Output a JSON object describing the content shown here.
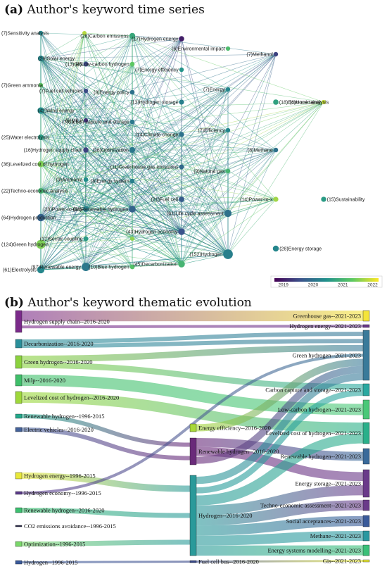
{
  "panel_a": {
    "letter": "(a)",
    "title": "Author's keyword time series"
  },
  "panel_b": {
    "letter": "(b)",
    "title": "Author's keyword thematic evolution"
  },
  "chart_data": [
    {
      "type": "scatter",
      "title": "Author's keyword time series",
      "colorbar": {
        "ticks": [
          "2019",
          "2020",
          "2021",
          "2022"
        ],
        "range": [
          2018.7,
          2022.2
        ]
      },
      "nodes": [
        {
          "id": "sensitivity",
          "label": "(7)Sensitivity analysis",
          "year": 2020.3,
          "size": 7
        },
        {
          "id": "small1",
          "label": "",
          "year": 2021.8,
          "size": 5
        },
        {
          "id": "carbon_em",
          "label": "(28)Carbon emissions",
          "year": 2020.8,
          "size": 28
        },
        {
          "id": "hydrogen_energy",
          "label": "(17)Hydrogen energy",
          "year": 2019.0,
          "size": 17
        },
        {
          "id": "env_impact",
          "label": "(6)Environmental impact",
          "year": 2021.1,
          "size": 6
        },
        {
          "id": "methanol",
          "label": "(7)Methanol",
          "year": 2019.4,
          "size": 7
        },
        {
          "id": "solar",
          "label": "(26)Solar energy",
          "year": 2020.3,
          "size": 26
        },
        {
          "id": "gis",
          "label": "(13)GIS",
          "year": 2019.5,
          "size": 13
        },
        {
          "id": "low_carbon",
          "label": "(8)Low-carbon hydrogen",
          "year": 2021.3,
          "size": 8
        },
        {
          "id": "en_eff",
          "label": "(7)Energy efficiency",
          "year": 2020.5,
          "size": 7
        },
        {
          "id": "green_ammonia",
          "label": "(7)Green ammonia",
          "year": 2021.3,
          "size": 7
        },
        {
          "id": "fuel_cell_veh",
          "label": "(7)Fuel cell vehicles",
          "year": 2019.5,
          "size": 7
        },
        {
          "id": "energy_policy",
          "label": "(8)Energy policy",
          "year": 2020.0,
          "size": 8
        },
        {
          "id": "energy",
          "label": "(7)Energy",
          "year": 2020.3,
          "size": 7
        },
        {
          "id": "econ",
          "label": "(18)Economic analysis",
          "year": 2020.7,
          "size": 18
        },
        {
          "id": "uncertainty",
          "label": "(6)Uncertainty",
          "year": 2021.9,
          "size": 6
        },
        {
          "id": "wind",
          "label": "(42)Wind energy",
          "year": 2020.4,
          "size": 42
        },
        {
          "id": "milp",
          "label": "(6)MILP",
          "year": 2019.2,
          "size": 6
        },
        {
          "id": "ccs",
          "label": "(7)Carbon capture and storage",
          "year": 2020.1,
          "size": 7
        },
        {
          "id": "h2storage",
          "label": "(13)Hydrogen storage",
          "year": 2020.2,
          "size": 13
        },
        {
          "id": "climate",
          "label": "(14)Climate change",
          "year": 2020.0,
          "size": 14
        },
        {
          "id": "efficiency",
          "label": "(7)Efficiency",
          "year": 2020.3,
          "size": 7
        },
        {
          "id": "water_el",
          "label": "(25)Water electrolysis",
          "year": 2020.6,
          "size": 25
        },
        {
          "id": "h2sc",
          "label": "(16)Hydrogen supply chain",
          "year": 2019.4,
          "size": 16
        },
        {
          "id": "optimization",
          "label": "(26)Optimization",
          "year": 2020.1,
          "size": 26
        },
        {
          "id": "methane",
          "label": "(8)Methane",
          "year": 2020.0,
          "size": 8
        },
        {
          "id": "lcoh",
          "label": "(36)Levelized cost of hydrogen",
          "year": 2021.5,
          "size": 36
        },
        {
          "id": "ghg",
          "label": "(11)Greenhouse gas emissions",
          "year": 2019.9,
          "size": 11
        },
        {
          "id": "natgas",
          "label": "(9)Natural gas",
          "year": 2021.0,
          "size": 9
        },
        {
          "id": "ammonia",
          "label": "(9)Ammonia",
          "year": 2020.4,
          "size": 9
        },
        {
          "id": "ensys",
          "label": "(8)Energy system",
          "year": 2020.2,
          "size": 8
        },
        {
          "id": "tea",
          "label": "(22)Techno-economic analysis",
          "year": 2021.0,
          "size": 22
        },
        {
          "id": "fuelcell",
          "label": "(21)Fuel cell",
          "year": 2019.7,
          "size": 21
        },
        {
          "id": "ptx",
          "label": "(14)Power-to-x",
          "year": 2021.7,
          "size": 14
        },
        {
          "id": "sustain",
          "label": "(15)Sustainability",
          "year": 2020.6,
          "size": 15
        },
        {
          "id": "ptg",
          "label": "(23)Power-to-Gas",
          "year": 2020.2,
          "size": 23
        },
        {
          "id": "renh2",
          "label": "(48)Renewable hydrogen",
          "year": 2019.8,
          "size": 48
        },
        {
          "id": "lca",
          "label": "(61)Life cycle assessment",
          "year": 2020.0,
          "size": 61
        },
        {
          "id": "h2prod",
          "label": "(64)Hydrogen production",
          "year": 2019.8,
          "size": 64
        },
        {
          "id": "sector",
          "label": "(12)Sector coupling",
          "year": 2020.6,
          "size": 12
        },
        {
          "id": "small2",
          "label": "",
          "year": 2021.6,
          "size": 5
        },
        {
          "id": "h2econ",
          "label": "(43)Hydrogen economy",
          "year": 2019.6,
          "size": 43
        },
        {
          "id": "greenh2",
          "label": "(124)Green hydrogen",
          "year": 2021.5,
          "size": 124
        },
        {
          "id": "h2",
          "label": "(152)Hydrogen",
          "year": 2020.2,
          "size": 152
        },
        {
          "id": "enstorage",
          "label": "(28)Energy storage",
          "year": 2020.3,
          "size": 28
        },
        {
          "id": "decarb",
          "label": "(45)Decarbonization",
          "year": 2021.0,
          "size": 45
        },
        {
          "id": "electrolysis",
          "label": "(61)Electrolysis",
          "year": 2020.3,
          "size": 61
        },
        {
          "id": "renenergy",
          "label": "(97)Renewable energy",
          "year": 2020.1,
          "size": 97
        },
        {
          "id": "blueh2",
          "label": "(10)Blue hydrogen",
          "year": 2021.2,
          "size": 10
        }
      ]
    },
    {
      "type": "sankey",
      "title": "Author's keyword thematic evolution",
      "sources": [
        {
          "id": "s_h2sc",
          "label": "Hydrogen supply chain--2016-2020",
          "color": "#7b2a8a"
        },
        {
          "id": "s_decarb",
          "label": "Decarbonization--2016-2020",
          "color": "#2a8f9a"
        },
        {
          "id": "s_greenh2",
          "label": "Green hydrogen--2016-2020",
          "color": "#8bd23e"
        },
        {
          "id": "s_milp",
          "label": "Milp--2016-2020",
          "color": "#3fbf6a"
        },
        {
          "id": "s_lcoh",
          "label": "Levelized cost of hydrogen--2016-2020",
          "color": "#9ed83a"
        },
        {
          "id": "s_renh2_96",
          "label": "Renewable hydrogen--1996-2015",
          "color": "#22a88a"
        },
        {
          "id": "s_ev",
          "label": "Electric vehicles--2016-2020",
          "color": "#44629a"
        },
        {
          "id": "s_h2en",
          "label": "Hydrogen energy--1996-2015",
          "color": "#e8e83a"
        },
        {
          "id": "s_h2econ",
          "label": "Hydrogen economy--1996-2015",
          "color": "#5a3a8a"
        },
        {
          "id": "s_renh2_16",
          "label": "Renewable hydrogen--2016-2020",
          "color": "#3cc070"
        },
        {
          "id": "s_co2",
          "label": "CO2 emissions avoidance--1996-2015",
          "color": "#2a2a4a"
        },
        {
          "id": "s_opt",
          "label": "Optimization--1996-2015",
          "color": "#7ad86a"
        },
        {
          "id": "s_h2_96",
          "label": "Hydrogen--1996-2015",
          "color": "#3a5a9a"
        }
      ],
      "middles": [
        {
          "id": "m_eneff",
          "label": "Energy efficiency--2016-2020",
          "color": "#a8d83a"
        },
        {
          "id": "m_renh2",
          "label": "Renewable hydrogen--2016-2020",
          "color": "#6a2a7a"
        },
        {
          "id": "m_h2",
          "label": "Hydrogen--2016-2020",
          "color": "#2a9a9a"
        },
        {
          "id": "m_fcb",
          "label": "Fuel cell bus--2016-2020",
          "color": "#3a4a8a"
        }
      ],
      "targets": [
        {
          "id": "t_ghg",
          "label": "Greenhouse gas--2021-2023",
          "color": "#f4e43a"
        },
        {
          "id": "t_h2en",
          "label": "Hydrogen energy--2021-2023",
          "color": "#6a3a8a"
        },
        {
          "id": "t_greenh2",
          "label": "Green hydrogen--2021-2023",
          "color": "#3a7a9a"
        },
        {
          "id": "t_ccs",
          "label": "Carbon capture and storage--2021-2023",
          "color": "#2aa8a0"
        },
        {
          "id": "t_lowc",
          "label": "Low-carbon hydrogen--2021-2023",
          "color": "#4ac878"
        },
        {
          "id": "t_lcoh",
          "label": "Levelized cost of hydrogen--2021-2023",
          "color": "#2ab08a"
        },
        {
          "id": "t_renh2",
          "label": "Renewable hydrogen--2021-2023",
          "color": "#3a6a9a"
        },
        {
          "id": "t_store",
          "label": "Energy storage--2021-2023",
          "color": "#6a3a8a"
        },
        {
          "id": "t_tea",
          "label": "Techno-economic assessment--2021-2023",
          "color": "#6a3a8a"
        },
        {
          "id": "t_social",
          "label": "Social acceptances--2021-2023",
          "color": "#3a5a9a"
        },
        {
          "id": "t_methane",
          "label": "Methane--2021-2023",
          "color": "#2a98a0"
        },
        {
          "id": "t_esm",
          "label": "Energy systems modelling--2021-2023",
          "color": "#3ac078"
        },
        {
          "id": "t_gis",
          "label": "Gis--2021-2023",
          "color": "#e8e83a"
        }
      ],
      "flows": [
        {
          "from": "s_h2sc",
          "to": "t_ghg"
        },
        {
          "from": "s_h2sc",
          "to": "t_h2en"
        },
        {
          "from": "s_decarb",
          "to": "t_greenh2"
        },
        {
          "from": "s_decarb",
          "to": "t_greenh2"
        },
        {
          "from": "s_greenh2",
          "to": "t_greenh2"
        },
        {
          "from": "s_greenh2",
          "to": "t_ccs"
        },
        {
          "from": "s_milp",
          "to": "t_lowc"
        },
        {
          "from": "s_lcoh",
          "to": "t_lcoh"
        },
        {
          "from": "s_renh2_96",
          "to": "m_renh2"
        },
        {
          "from": "s_ev",
          "to": "m_renh2"
        },
        {
          "from": "s_h2en",
          "to": "m_h2"
        },
        {
          "from": "s_h2econ",
          "to": "t_greenh2"
        },
        {
          "from": "s_renh2_16",
          "to": "m_h2"
        },
        {
          "from": "s_opt",
          "to": "m_h2"
        },
        {
          "from": "s_h2_96",
          "to": "m_fcb"
        },
        {
          "from": "m_eneff",
          "to": "t_greenh2"
        },
        {
          "from": "m_renh2",
          "to": "t_renh2"
        },
        {
          "from": "m_renh2",
          "to": "t_store"
        },
        {
          "from": "m_renh2",
          "to": "t_greenh2"
        },
        {
          "from": "m_h2",
          "to": "t_greenh2"
        },
        {
          "from": "m_h2",
          "to": "t_ccs"
        },
        {
          "from": "m_h2",
          "to": "t_lcoh"
        },
        {
          "from": "m_h2",
          "to": "t_store"
        },
        {
          "from": "m_h2",
          "to": "t_tea"
        },
        {
          "from": "m_h2",
          "to": "t_social"
        },
        {
          "from": "m_h2",
          "to": "t_methane"
        },
        {
          "from": "m_h2",
          "to": "t_esm"
        },
        {
          "from": "m_fcb",
          "to": "t_gis"
        }
      ]
    }
  ]
}
